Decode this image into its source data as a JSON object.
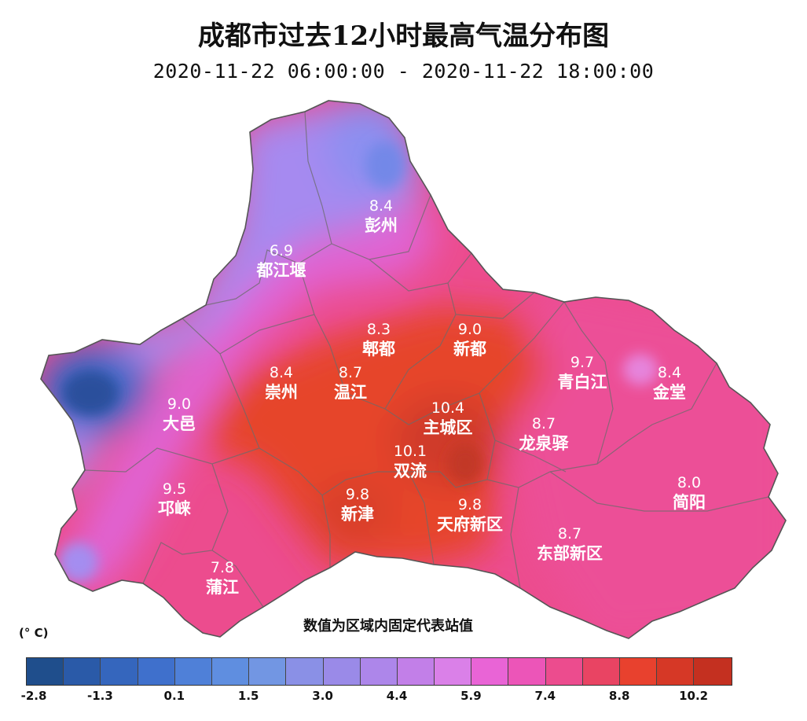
{
  "title": "成都市过去12小时最高气温分布图",
  "subtitle": "2020-11-22 06:00:00 - 2020-11-22 18:00:00",
  "note": "数值为区域内固定代表站值",
  "unit": "(° C)",
  "legend": {
    "colors": [
      "#1f4e8c",
      "#2a5aa8",
      "#3566bd",
      "#3f70cc",
      "#4f80d8",
      "#5f8ee0",
      "#7296e3",
      "#8a90e6",
      "#9a8ae8",
      "#ad86ea",
      "#c27fe8",
      "#da80e8",
      "#e964d6",
      "#ec55b8",
      "#ec4c8e",
      "#e94463",
      "#e8412e",
      "#d63826",
      "#c43020"
    ],
    "ticks": [
      {
        "label": "-2.8",
        "index": 0
      },
      {
        "label": "-1.3",
        "index": 2
      },
      {
        "label": "0.1",
        "index": 4
      },
      {
        "label": "1.5",
        "index": 6
      },
      {
        "label": "3.0",
        "index": 8
      },
      {
        "label": "4.4",
        "index": 10
      },
      {
        "label": "5.9",
        "index": 12
      },
      {
        "label": "7.4",
        "index": 14
      },
      {
        "label": "8.8",
        "index": 16
      },
      {
        "label": "10.2",
        "index": 18
      }
    ]
  },
  "stations": [
    {
      "name": "彭州",
      "value": "8.4"
    },
    {
      "name": "都江堰",
      "value": "6.9"
    },
    {
      "name": "郫都",
      "value": "8.3"
    },
    {
      "name": "新都",
      "value": "9.0"
    },
    {
      "name": "青白江",
      "value": "9.7"
    },
    {
      "name": "金堂",
      "value": "8.4"
    },
    {
      "name": "崇州",
      "value": "8.4"
    },
    {
      "name": "温江",
      "value": "8.7"
    },
    {
      "name": "主城区",
      "value": "10.4"
    },
    {
      "name": "龙泉驿",
      "value": "8.7"
    },
    {
      "name": "大邑",
      "value": "9.0"
    },
    {
      "name": "双流",
      "value": "10.1"
    },
    {
      "name": "简阳",
      "value": "8.0"
    },
    {
      "name": "邛崃",
      "value": "9.5"
    },
    {
      "name": "新津",
      "value": "9.8"
    },
    {
      "name": "天府新区",
      "value": "9.8"
    },
    {
      "name": "东部新区",
      "value": "8.7"
    },
    {
      "name": "蒲江",
      "value": "7.8"
    }
  ]
}
